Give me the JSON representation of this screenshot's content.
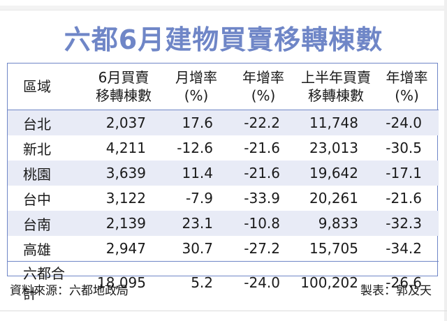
{
  "title": "六都6月建物買賣移轉棟數",
  "headers": [
    [
      "區域"
    ],
    [
      "6月買賣",
      "移轉棟數"
    ],
    [
      "月增率",
      "(%)"
    ],
    [
      "年增率",
      "(%)"
    ],
    [
      "上半年買賣",
      "移轉棟數"
    ],
    [
      "年增率",
      "(%)"
    ]
  ],
  "rows": [
    [
      "台北",
      "2,037",
      "17.6",
      "-22.2",
      "11,748",
      "-24.0"
    ],
    [
      "新北",
      "4,211",
      "-12.6",
      "-21.6",
      "23,013",
      "-30.5"
    ],
    [
      "桃園",
      "3,639",
      "11.4",
      "-21.6",
      "19,642",
      "-17.1"
    ],
    [
      "台中",
      "3,122",
      "-7.9",
      "-33.9",
      "20,261",
      "-21.6"
    ],
    [
      "台南",
      "2,139",
      "23.1",
      "-10.8",
      "9,833",
      "-32.3"
    ],
    [
      "高雄",
      "2,947",
      "30.7",
      "-27.2",
      "15,705",
      "-34.2"
    ],
    [
      "六都合計",
      "18,095",
      "5.2",
      "-24.0",
      "100,202",
      "-26.6"
    ]
  ],
  "footer": {
    "source": "資料來源：六都地政局",
    "credit": "製表：郭及天"
  },
  "colors": {
    "accent": "#6f86c7",
    "row_shade": "#e8ebf6"
  }
}
